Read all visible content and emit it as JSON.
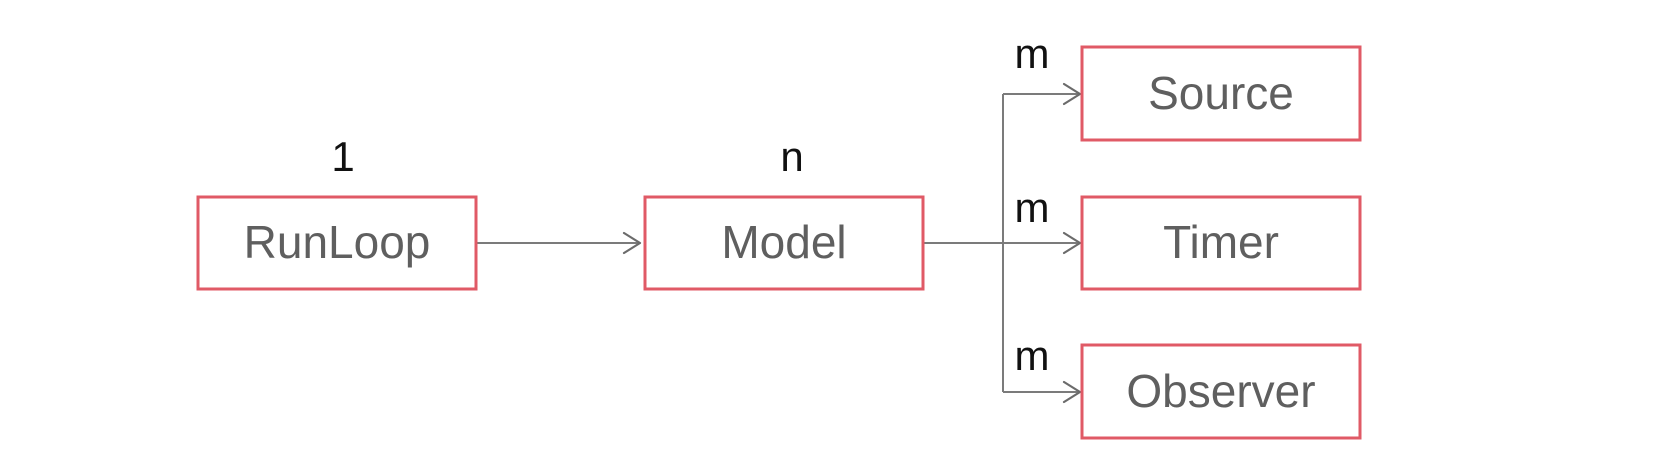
{
  "diagram": {
    "nodes": {
      "runloop": {
        "label": "RunLoop",
        "multiplicity": "1"
      },
      "model": {
        "label": "Model",
        "multiplicity": "n"
      },
      "source": {
        "label": "Source",
        "multiplicity": "m"
      },
      "timer": {
        "label": "Timer",
        "multiplicity": "m"
      },
      "observer": {
        "label": "Observer",
        "multiplicity": "m"
      }
    },
    "edges": [
      {
        "from": "RunLoop",
        "to": "Model"
      },
      {
        "from": "Model",
        "to": "Source"
      },
      {
        "from": "Model",
        "to": "Timer"
      },
      {
        "from": "Model",
        "to": "Observer"
      }
    ],
    "colors": {
      "box_border": "#e05a66",
      "box_text": "#5f5f5f",
      "connector": "#7b7b7b",
      "multiplicity_text": "#111111"
    }
  }
}
